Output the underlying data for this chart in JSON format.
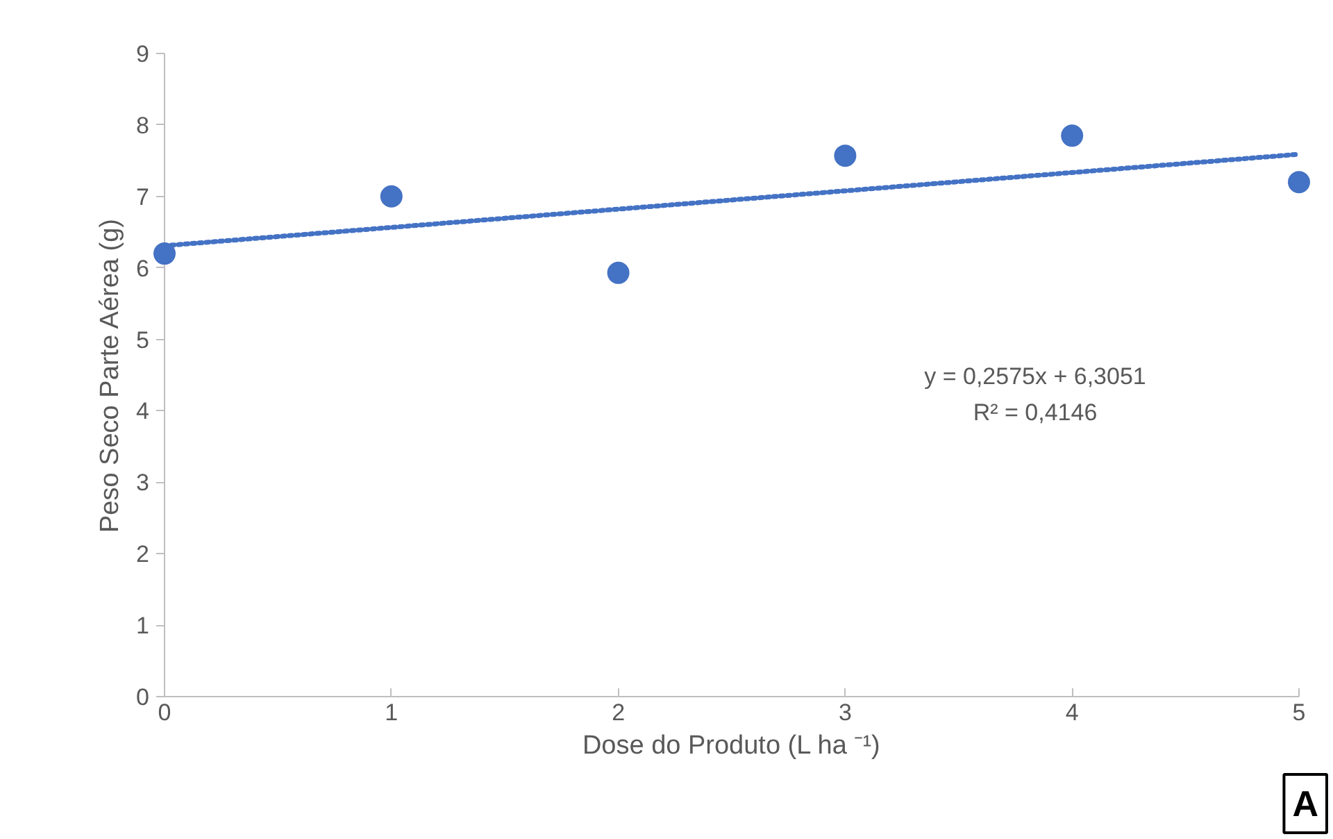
{
  "chart_data": {
    "type": "scatter",
    "xlabel": "Dose do Produto (L ha ⁻¹)",
    "ylabel": "Peso Seco Parte Aérea (g)",
    "xlim": [
      0,
      5
    ],
    "ylim": [
      0,
      9
    ],
    "xticks": [
      0,
      1,
      2,
      3,
      4,
      5
    ],
    "yticks": [
      0,
      1,
      2,
      3,
      4,
      5,
      6,
      7,
      8,
      9
    ],
    "grid": false,
    "marker": "circle",
    "series": [
      {
        "color": "#4472c4",
        "x": [
          0,
          1,
          2,
          3,
          4,
          5
        ],
        "values": [
          6.2,
          7.0,
          5.93,
          7.57,
          7.85,
          7.2
        ]
      },
      {
        "type": "line",
        "color": "#4472c4",
        "line_style": "dotted",
        "marker": "none",
        "x": [
          0,
          5
        ],
        "values": [
          6.31,
          7.59
        ]
      }
    ],
    "annotations": [
      "y = 0,2575x + 6,3051",
      "R² = 0,4146",
      "A"
    ]
  }
}
